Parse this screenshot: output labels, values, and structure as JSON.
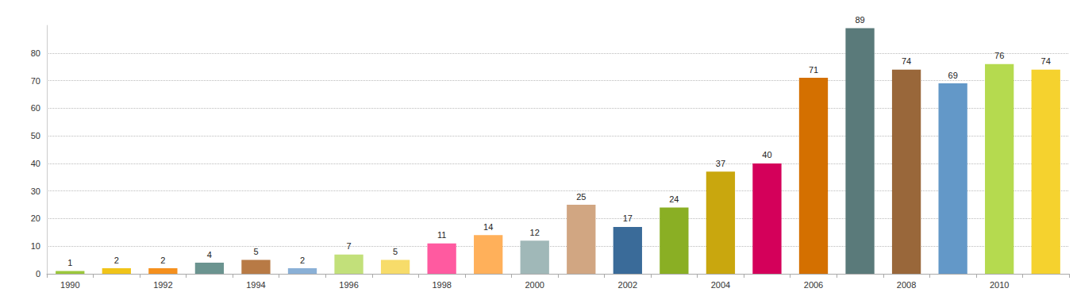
{
  "chart_data": {
    "type": "bar",
    "categories": [
      "1990",
      null,
      "1992",
      null,
      "1994",
      null,
      "1996",
      null,
      "1998",
      null,
      "2000",
      null,
      "2002",
      null,
      "2004",
      null,
      "2006",
      null,
      "2008",
      null,
      "2010",
      null
    ],
    "values": [
      1,
      2,
      2,
      4,
      5,
      2,
      7,
      5,
      11,
      14,
      12,
      25,
      17,
      24,
      37,
      40,
      71,
      89,
      74,
      69,
      76,
      74
    ],
    "colors": [
      "#9bc83c",
      "#f0c419",
      "#f5901e",
      "#6b9490",
      "#b87a45",
      "#8ab0d6",
      "#c2e07a",
      "#f7dc6a",
      "#ff5aa0",
      "#ffb05a",
      "#a0b8b8",
      "#d1a682",
      "#3a6b99",
      "#8aaf24",
      "#c9a70e",
      "#d4005a",
      "#d47000",
      "#5a7a7a",
      "#99673a",
      "#6398c8",
      "#b5da4f",
      "#f5d22e"
    ],
    "ylim": [
      0,
      90
    ],
    "yticks": [
      0,
      10,
      20,
      30,
      40,
      50,
      60,
      70,
      80
    ],
    "grid": true,
    "data_labels": true
  }
}
